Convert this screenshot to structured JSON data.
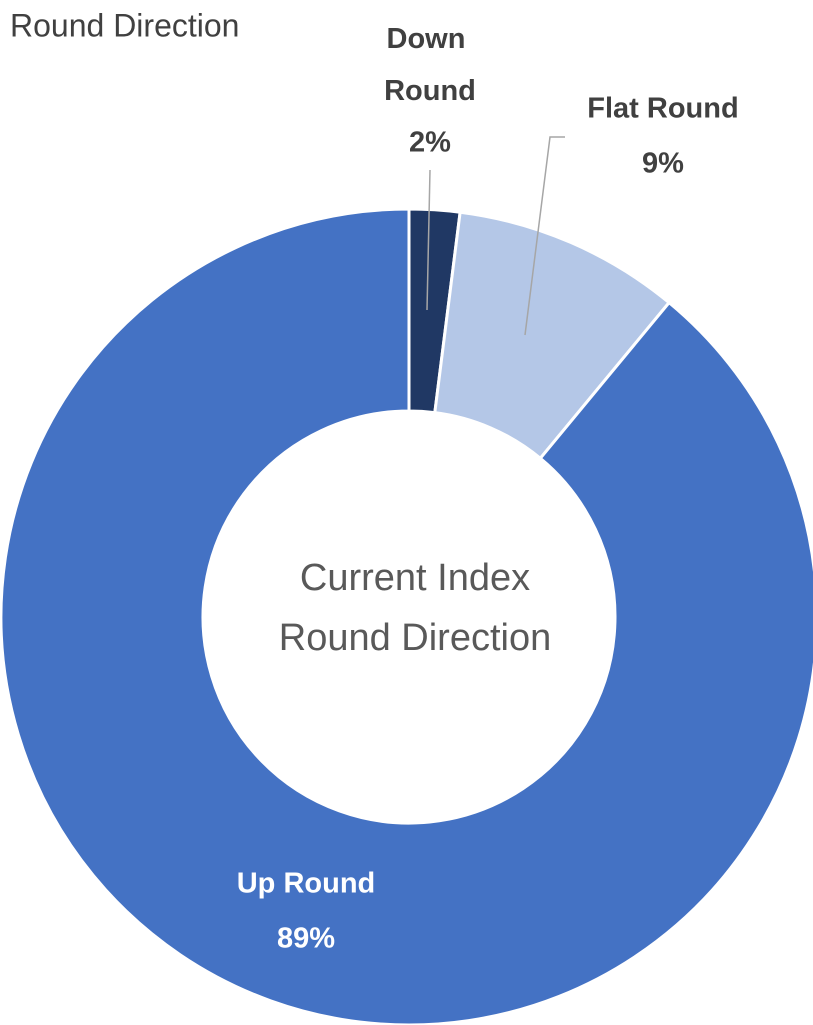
{
  "chart_data": {
    "type": "donut",
    "title": "Round Direction",
    "center_text": [
      "Current Index",
      "Round Direction"
    ],
    "categories": [
      "Down Round",
      "Flat Round",
      "Up Round"
    ],
    "values": [
      2,
      9,
      89
    ],
    "value_labels": [
      "2%",
      "9%",
      "89%"
    ],
    "colors": [
      "#203864",
      "#b4c7e7",
      "#4472c4"
    ]
  }
}
